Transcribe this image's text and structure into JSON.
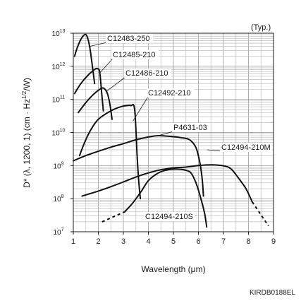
{
  "note": "(Typ.)",
  "doc_code": "KIRDB0188EL",
  "chart_data": {
    "type": "line",
    "xlabel": "Wavelength (μm)",
    "ylabel": "D* (λ, 1200, 1) (cm · Hz",
    "ylabel_sup": "1/2",
    "ylabel_end": "/W)",
    "y_scale": "log",
    "xlim": [
      1,
      9
    ],
    "ylim": [
      10000000,
      10000000000000
    ],
    "x_ticks": [
      "1",
      "2",
      "3",
      "4",
      "5",
      "6",
      "7",
      "8",
      "9"
    ],
    "y_ticks": [
      {
        "base": "10",
        "exp": "7",
        "value": 10000000
      },
      {
        "base": "10",
        "exp": "8",
        "value": 100000000
      },
      {
        "base": "10",
        "exp": "9",
        "value": 1000000000
      },
      {
        "base": "10",
        "exp": "10",
        "value": 10000000000
      },
      {
        "base": "10",
        "exp": "11",
        "value": 100000000000
      },
      {
        "base": "10",
        "exp": "12",
        "value": 1000000000000
      },
      {
        "base": "10",
        "exp": "13",
        "value": 10000000000000
      }
    ],
    "grid": true,
    "series": [
      {
        "name": "C12483-250",
        "points": [
          [
            1.05,
            2000000000000.0
          ],
          [
            1.15,
            3500000000000.0
          ],
          [
            1.3,
            6500000000000.0
          ],
          [
            1.45,
            9000000000000.0
          ],
          [
            1.55,
            8000000000000.0
          ],
          [
            1.65,
            4000000000000.0
          ],
          [
            1.75,
            1200000000000.0
          ],
          [
            1.85,
            300000000000.0
          ]
        ],
        "label_at": [
          1.65,
          4000000000000.0
        ]
      },
      {
        "name": "C12485-210",
        "points": [
          [
            1.05,
            150000000000.0
          ],
          [
            1.3,
            300000000000.0
          ],
          [
            1.6,
            550000000000.0
          ],
          [
            1.85,
            800000000000.0
          ],
          [
            1.95,
            850000000000.0
          ],
          [
            2.05,
            700000000000.0
          ],
          [
            2.12,
            200000000000.0
          ],
          [
            2.2,
            45000000000.0
          ]
        ],
        "label_at": [
          2.03,
          600000000000.0
        ]
      },
      {
        "name": "C12486-210",
        "points": [
          [
            1.2,
            40000000000.0
          ],
          [
            1.5,
            80000000000.0
          ],
          [
            1.8,
            140000000000.0
          ],
          [
            2.05,
            200000000000.0
          ],
          [
            2.2,
            220000000000.0
          ],
          [
            2.35,
            160000000000.0
          ],
          [
            2.45,
            80000000000.0
          ],
          [
            2.55,
            25000000000.0
          ]
        ],
        "label_at": [
          2.3,
          170000000000.0
        ]
      },
      {
        "name": "C12492-210",
        "points": [
          [
            1.25,
            2000000000.0
          ],
          [
            1.45,
            5000000000.0
          ],
          [
            1.7,
            12000000000.0
          ],
          [
            2,
            25000000000.0
          ],
          [
            2.5,
            45000000000.0
          ],
          [
            2.9,
            60000000000.0
          ],
          [
            3.15,
            65000000000.0
          ],
          [
            3.3,
            65000000000.0
          ],
          [
            3.45,
            50000000000.0
          ],
          [
            3.55,
            2000000000.0
          ],
          [
            3.62,
            300000000.0
          ],
          [
            3.68,
            100000000.0
          ]
        ],
        "label_at": [
          3.38,
          22000000000.0
        ]
      },
      {
        "name": "P4631-03",
        "points": [
          [
            1,
            1400000000.0
          ],
          [
            1.5,
            2000000000.0
          ],
          [
            2,
            2700000000.0
          ],
          [
            2.5,
            3600000000.0
          ],
          [
            3,
            4600000000.0
          ],
          [
            3.5,
            6000000000.0
          ],
          [
            4,
            7300000000.0
          ],
          [
            4.4,
            8000000000.0
          ],
          [
            4.9,
            7600000000.0
          ],
          [
            5.3,
            7000000000.0
          ],
          [
            5.65,
            6000000000.0
          ],
          [
            5.9,
            3500000000.0
          ],
          [
            6.05,
            1300000000.0
          ],
          [
            6.15,
            400000000.0
          ],
          [
            6.2,
            120000000.0
          ]
        ],
        "label_at": [
          4.4,
          8000000000.0
        ]
      },
      {
        "name": "C12494-210M",
        "points": [
          [
            1.35,
            120000000.0
          ],
          [
            2,
            170000000.0
          ],
          [
            2.5,
            230000000.0
          ],
          [
            3,
            320000000.0
          ],
          [
            3.5,
            450000000.0
          ],
          [
            4,
            600000000.0
          ],
          [
            4.5,
            750000000.0
          ],
          [
            5,
            850000000.0
          ],
          [
            5.5,
            900000000.0
          ],
          [
            6,
            1000000000.0
          ],
          [
            6.5,
            1050000000.0
          ],
          [
            7,
            980000000.0
          ],
          [
            7.3,
            800000000.0
          ],
          [
            7.6,
            420000000.0
          ],
          [
            7.9,
            200000000.0
          ],
          [
            8.15,
            80000000.0
          ]
        ],
        "dashed_from": [
          8.15,
          80000000.0
        ],
        "dashed_to": [
          8.8,
          15000000.0
        ],
        "label_at": [
          6.35,
          3000000000.0
        ]
      },
      {
        "name": "C12494-210S",
        "points": [
          [
            3.05,
            40000000.0
          ],
          [
            3.35,
            70000000.0
          ],
          [
            3.7,
            160000000.0
          ],
          [
            4,
            350000000.0
          ],
          [
            4.4,
            600000000.0
          ],
          [
            4.8,
            750000000.0
          ],
          [
            5.2,
            780000000.0
          ],
          [
            5.5,
            720000000.0
          ],
          [
            5.7,
            600000000.0
          ],
          [
            5.9,
            300000000.0
          ],
          [
            6.1,
            100000000.0
          ],
          [
            6.25,
            35000000.0
          ],
          [
            6.33,
            14000000.0
          ]
        ],
        "dashed_from": [
          2.15,
          20000000.0
        ],
        "dashed_to": [
          3.05,
          40000000.0
        ],
        "label_at": [
          5.9,
          30000000.0
        ]
      }
    ]
  }
}
